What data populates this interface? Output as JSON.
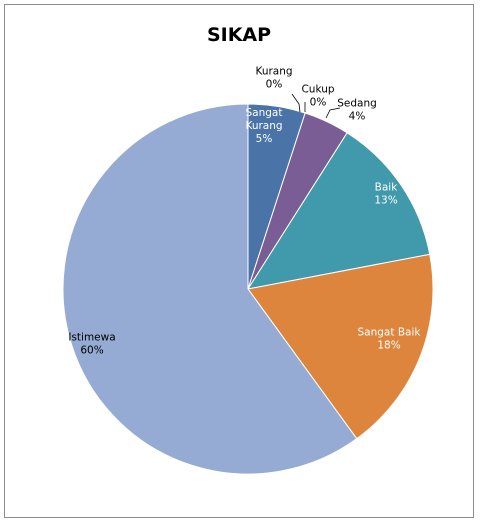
{
  "chart_data": {
    "type": "pie",
    "title": "SIKAP",
    "slices": [
      {
        "label": "Sangat Kurang",
        "display": [
          "Sangat",
          "Kurang",
          "5%"
        ],
        "value": 5,
        "color": "#4a73a8",
        "label_inside": true
      },
      {
        "label": "Kurang",
        "display": [
          "Kurang",
          "0%"
        ],
        "value": 0,
        "color": "#b64c4a",
        "label_inside": false
      },
      {
        "label": "Cukup",
        "display": [
          "Cukup",
          "0%"
        ],
        "value": 0,
        "color": "#90b456",
        "label_inside": false
      },
      {
        "label": "Sedang",
        "display": [
          "Sedang",
          "4%"
        ],
        "value": 4,
        "color": "#7a5d95",
        "label_inside": false
      },
      {
        "label": "Baik",
        "display": [
          "Baik",
          "13%"
        ],
        "value": 13,
        "color": "#4199ac",
        "label_inside": true
      },
      {
        "label": "Sangat Baik",
        "display": [
          "Sangat Baik",
          "18%"
        ],
        "value": 18,
        "color": "#dd853d",
        "label_inside": true
      },
      {
        "label": "Istimewa",
        "display": [
          "Istimewa",
          "60%"
        ],
        "value": 60,
        "color": "#95abd3",
        "label_inside": false
      }
    ],
    "grid": false,
    "legend": "none"
  }
}
